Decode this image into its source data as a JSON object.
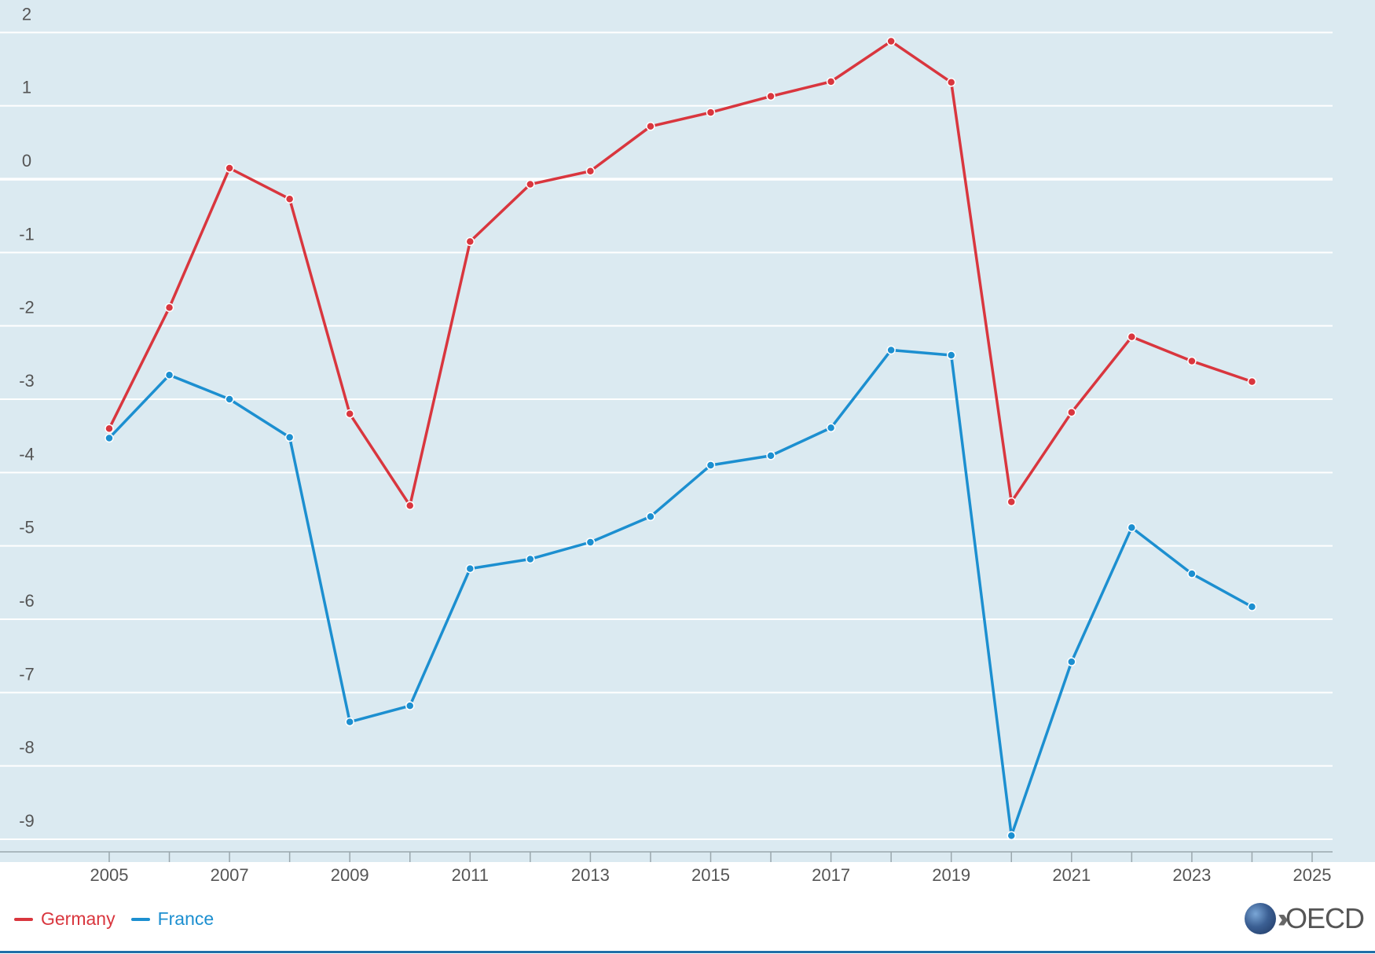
{
  "chart_data": {
    "type": "line",
    "title": "",
    "xlabel": "",
    "ylabel": "",
    "x": [
      2005,
      2006,
      2007,
      2008,
      2009,
      2010,
      2011,
      2012,
      2013,
      2014,
      2015,
      2016,
      2017,
      2018,
      2019,
      2020,
      2021,
      2022,
      2023,
      2024
    ],
    "series": [
      {
        "name": "Germany",
        "color": "#d9363e",
        "values": [
          -3.4,
          -1.75,
          0.15,
          -0.27,
          -3.2,
          -4.45,
          -0.85,
          -0.07,
          0.11,
          0.72,
          0.91,
          1.13,
          1.33,
          1.88,
          1.32,
          -4.4,
          -3.18,
          -2.15,
          -2.48,
          -2.76
        ]
      },
      {
        "name": "France",
        "color": "#1c8fd0",
        "values": [
          -3.53,
          -2.67,
          -3.0,
          -3.52,
          -7.4,
          -7.18,
          -5.31,
          -5.18,
          -4.95,
          -4.6,
          -3.9,
          -3.77,
          -3.39,
          -2.33,
          -2.4,
          -8.95,
          -6.58,
          -4.75,
          -5.38,
          -5.83
        ]
      }
    ],
    "ylim": [
      -9.15,
      2.2
    ],
    "yticks": [
      2,
      1,
      0,
      -1,
      -2,
      -3,
      -4,
      -5,
      -6,
      -7,
      -8,
      -9
    ],
    "xlim": [
      2004.4,
      2025.3
    ],
    "xticks": [
      2005,
      2007,
      2009,
      2011,
      2013,
      2015,
      2017,
      2019,
      2021,
      2023,
      2025
    ],
    "grid": true,
    "legend_position": "bottom-left"
  },
  "legend": {
    "items": [
      {
        "label": "Germany",
        "color": "#d9363e"
      },
      {
        "label": "France",
        "color": "#1c8fd0"
      }
    ]
  },
  "logo": {
    "text": "OECD"
  }
}
